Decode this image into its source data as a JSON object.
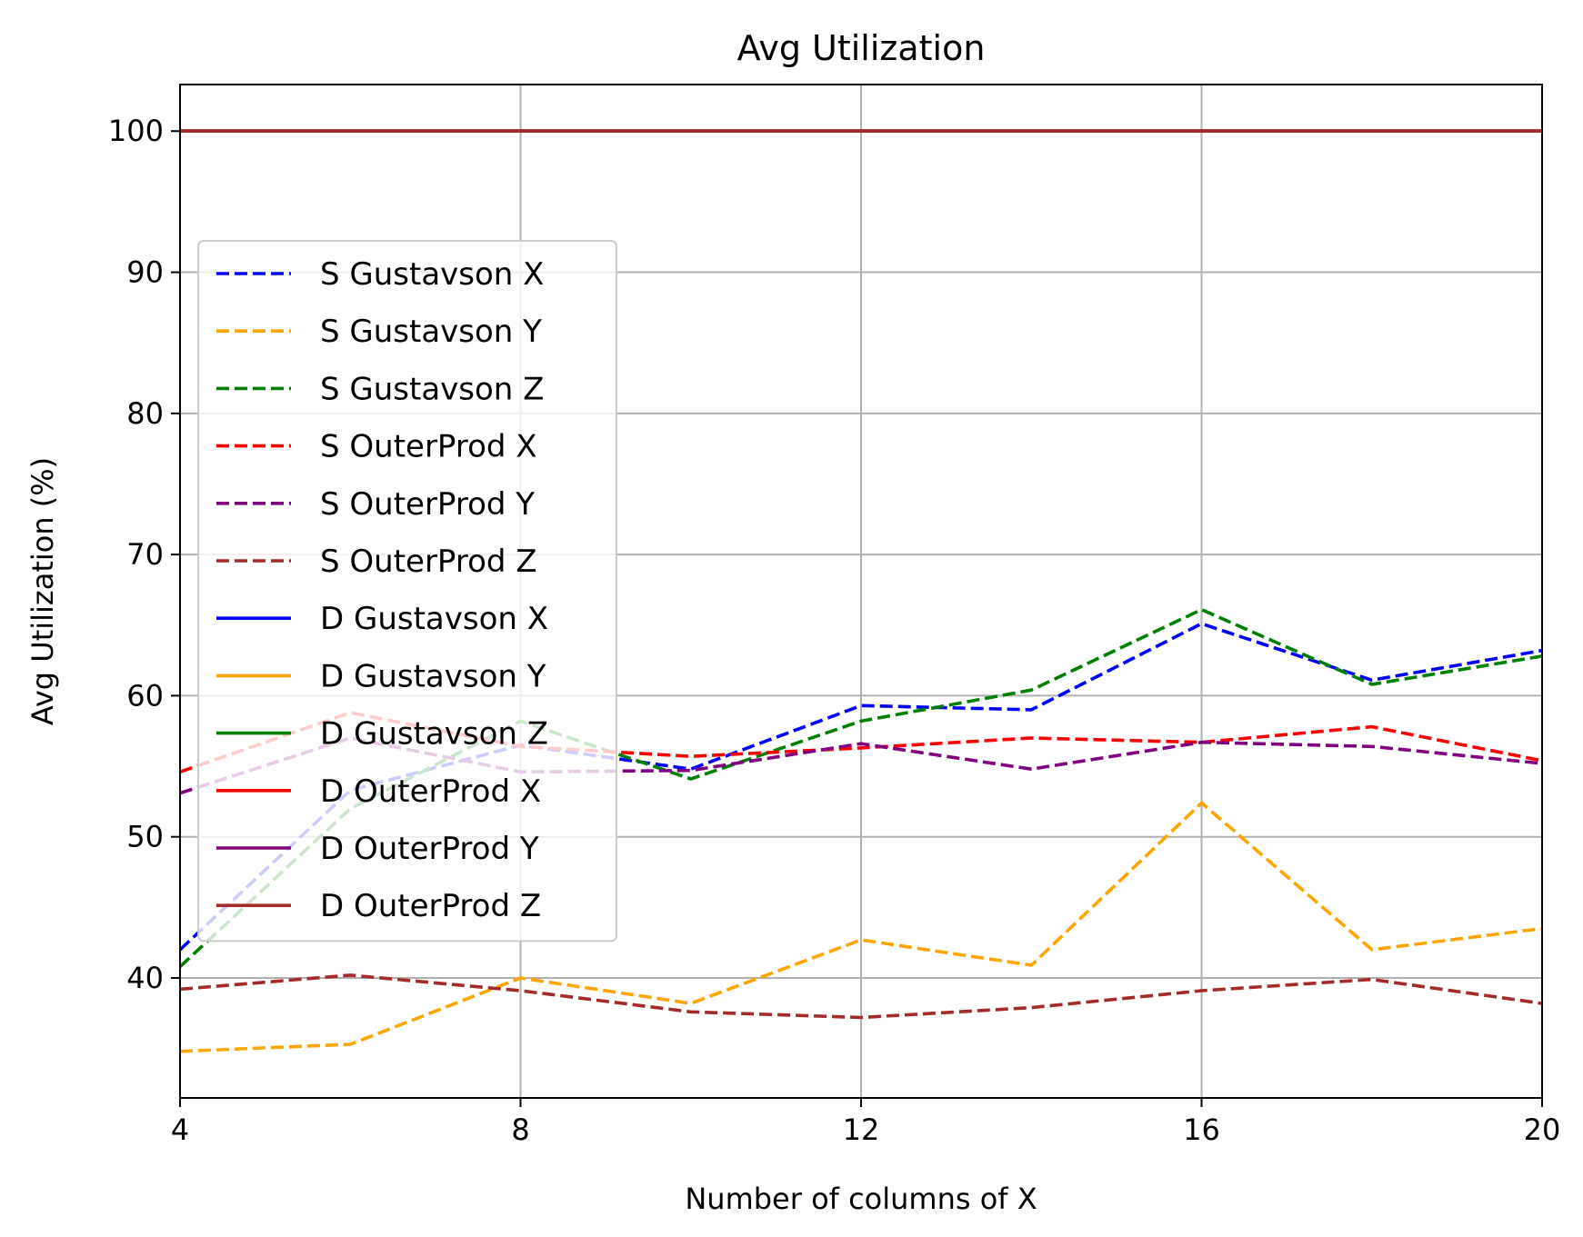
{
  "chart_data": {
    "type": "line",
    "title": "Avg Utilization",
    "xlabel": "Number of columns of X",
    "ylabel": "Avg Utilization (%)",
    "xlim": [
      4,
      20
    ],
    "ylim": [
      31.5,
      103.3
    ],
    "xticks": [
      4,
      8,
      12,
      16,
      20
    ],
    "yticks": [
      40,
      50,
      60,
      70,
      80,
      90,
      100
    ],
    "grid": true,
    "legend_position": "center-left",
    "x": [
      4,
      6,
      8,
      10,
      12,
      14,
      16,
      18,
      20
    ],
    "series": [
      {
        "name": "S Gustavson X",
        "style": "dashed",
        "color": "#0000ff",
        "values": [
          42.0,
          53.3,
          56.5,
          54.8,
          59.3,
          59.0,
          65.1,
          61.1,
          63.2
        ]
      },
      {
        "name": "S Gustavson Y",
        "style": "dashed",
        "color": "#ffa500",
        "values": [
          34.8,
          35.3,
          40.0,
          38.2,
          42.7,
          40.9,
          52.4,
          42.0,
          43.5
        ]
      },
      {
        "name": "S Gustavson Z",
        "style": "dashed",
        "color": "#008000",
        "values": [
          40.8,
          52.0,
          58.2,
          54.1,
          58.2,
          60.4,
          66.1,
          60.8,
          62.8
        ]
      },
      {
        "name": "S OuterProd X",
        "style": "dashed",
        "color": "#ff0000",
        "values": [
          54.6,
          58.8,
          56.4,
          55.7,
          56.3,
          57.0,
          56.7,
          57.8,
          55.4
        ]
      },
      {
        "name": "S OuterProd Y",
        "style": "dashed",
        "color": "#800080",
        "values": [
          53.1,
          57.0,
          54.6,
          54.7,
          56.6,
          54.8,
          56.7,
          56.4,
          55.2
        ]
      },
      {
        "name": "S OuterProd Z",
        "style": "dashed",
        "color": "#a52a2a",
        "values": [
          39.2,
          40.2,
          39.1,
          37.6,
          37.2,
          37.9,
          39.1,
          39.9,
          38.2
        ]
      },
      {
        "name": "D Gustavson X",
        "style": "solid",
        "color": "#0000ff",
        "values": [
          100,
          100,
          100,
          100,
          100,
          100,
          100,
          100,
          100
        ]
      },
      {
        "name": "D Gustavson Y",
        "style": "solid",
        "color": "#ffa500",
        "values": [
          100,
          100,
          100,
          100,
          100,
          100,
          100,
          100,
          100
        ]
      },
      {
        "name": "D Gustavson Z",
        "style": "solid",
        "color": "#008000",
        "values": [
          100,
          100,
          100,
          100,
          100,
          100,
          100,
          100,
          100
        ]
      },
      {
        "name": "D OuterProd X",
        "style": "solid",
        "color": "#ff0000",
        "values": [
          100,
          100,
          100,
          100,
          100,
          100,
          100,
          100,
          100
        ]
      },
      {
        "name": "D OuterProd Y",
        "style": "solid",
        "color": "#800080",
        "values": [
          100,
          100,
          100,
          100,
          100,
          100,
          100,
          100,
          100
        ]
      },
      {
        "name": "D OuterProd Z",
        "style": "solid",
        "color": "#a52a2a",
        "values": [
          100,
          100,
          100,
          100,
          100,
          100,
          100,
          100,
          100
        ]
      }
    ]
  }
}
